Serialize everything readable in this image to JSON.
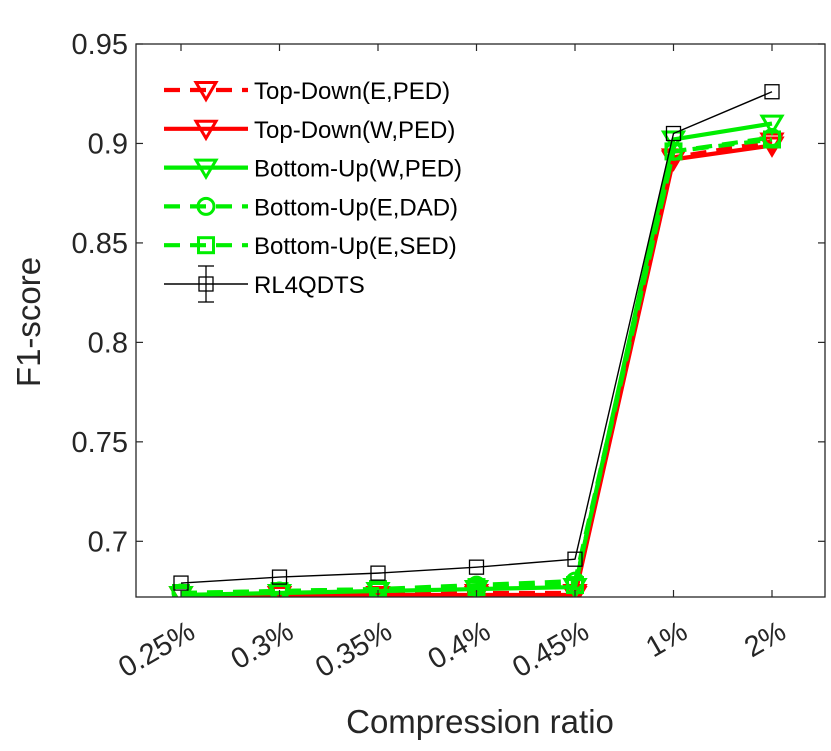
{
  "chart_data": {
    "type": "line",
    "title": "",
    "xlabel": "Compression ratio",
    "ylabel": "F1-score",
    "categories": [
      "0.25%",
      "0.3%",
      "0.35%",
      "0.4%",
      "0.45%",
      "1%",
      "2%"
    ],
    "ylim": [
      0.672,
      0.95
    ],
    "yticks": [
      0.7,
      0.75,
      0.8,
      0.85,
      0.9,
      0.95
    ],
    "ytick_labels": [
      "0.7",
      "0.75",
      "0.8",
      "0.85",
      "0.9",
      "0.95"
    ],
    "grid": false,
    "legend_position": "top-left",
    "series": [
      {
        "name": "Top-Down(E,PED)",
        "color": "#ff0000",
        "dash": "dashed",
        "marker": "triangle-down",
        "values": [
          0.673,
          0.673,
          0.673,
          0.674,
          0.674,
          0.893,
          0.901
        ]
      },
      {
        "name": "Top-Down(W,PED)",
        "color": "#ff0000",
        "dash": "solid",
        "marker": "triangle-down",
        "values": [
          0.673,
          0.673,
          0.673,
          0.673,
          0.673,
          0.892,
          0.899
        ]
      },
      {
        "name": "Bottom-Up(W,PED)",
        "color": "#00ee00",
        "dash": "solid",
        "marker": "triangle-down",
        "values": [
          0.673,
          0.674,
          0.675,
          0.676,
          0.677,
          0.902,
          0.91
        ]
      },
      {
        "name": "Bottom-Up(E,DAD)",
        "color": "#00ee00",
        "dash": "dashed",
        "marker": "circle",
        "values": [
          0.674,
          0.675,
          0.676,
          0.678,
          0.68,
          0.896,
          0.903
        ]
      },
      {
        "name": "Bottom-Up(E,SED)",
        "color": "#00ee00",
        "dash": "dashed",
        "marker": "square",
        "values": [
          0.674,
          0.675,
          0.676,
          0.677,
          0.678,
          0.896,
          0.902
        ]
      },
      {
        "name": "RL4QDTS",
        "color": "#000000",
        "dash": "solid",
        "marker": "square-errorbar",
        "values": [
          0.679,
          0.682,
          0.684,
          0.687,
          0.691,
          0.905,
          0.926
        ]
      }
    ]
  }
}
